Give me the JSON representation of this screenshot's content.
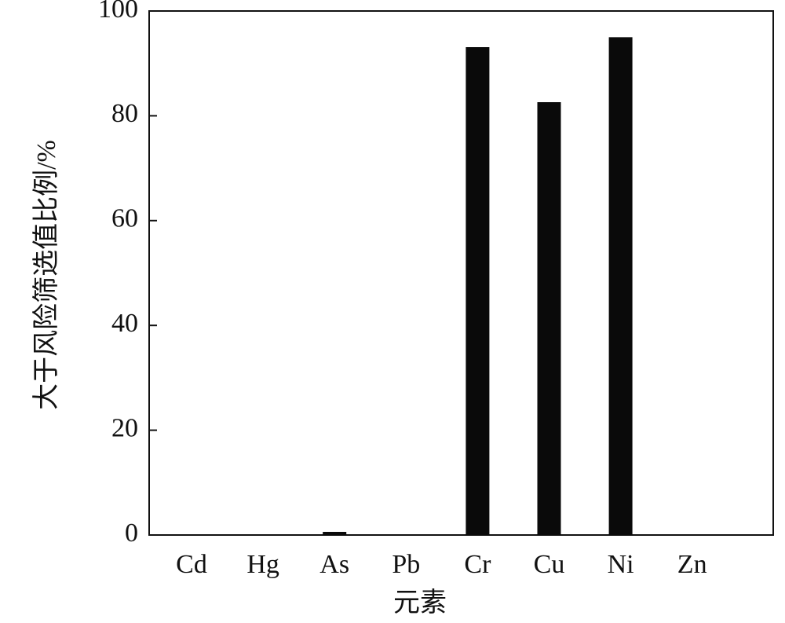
{
  "chart_data": {
    "type": "bar",
    "x_label": "元素",
    "y_label": "大于风险筛选值比例/%",
    "categories": [
      "Cd",
      "Hg",
      "As",
      "Pb",
      "Cr",
      "Cu",
      "Ni",
      "Zn"
    ],
    "values": [
      0,
      0,
      0.6,
      0,
      93.1,
      82.6,
      95.0,
      0
    ],
    "color": "#0a0a0a",
    "ylim": [
      0,
      100
    ],
    "yticks": [
      0,
      20,
      40,
      60,
      80,
      100
    ],
    "grid": false
  }
}
